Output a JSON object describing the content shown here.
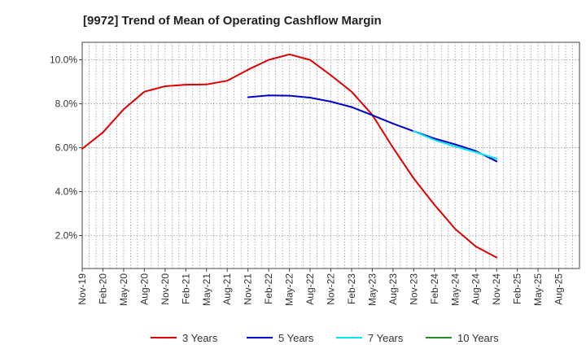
{
  "chart_data": {
    "type": "line",
    "title": "[9972]  Trend of Mean of Operating Cashflow Margin",
    "xlabel": "",
    "ylabel": "",
    "ylim": [
      0.5,
      10.8
    ],
    "y_ticks": [
      2.0,
      4.0,
      6.0,
      8.0,
      10.0
    ],
    "y_tick_labels": [
      "2.0%",
      "4.0%",
      "6.0%",
      "8.0%",
      "10.0%"
    ],
    "x_tick_labels": [
      "Nov-19",
      "Feb-20",
      "May-20",
      "Aug-20",
      "Nov-20",
      "Feb-21",
      "May-21",
      "Aug-21",
      "Nov-21",
      "Feb-22",
      "May-22",
      "Aug-22",
      "Nov-22",
      "Feb-23",
      "May-23",
      "Aug-23",
      "Nov-23",
      "Feb-24",
      "May-24",
      "Aug-24",
      "Nov-24",
      "Feb-25",
      "May-25",
      "Aug-25"
    ],
    "grid": true,
    "legend_position": "bottom",
    "series": [
      {
        "name": "3 Years",
        "color": "#dd0000",
        "start_index": 0,
        "values": [
          5.95,
          6.7,
          7.75,
          8.55,
          8.8,
          8.87,
          8.88,
          9.05,
          9.55,
          10.0,
          10.25,
          10.0,
          9.3,
          8.55,
          7.5,
          6.0,
          4.6,
          3.4,
          2.3,
          1.5,
          1.0
        ]
      },
      {
        "name": "5 Years",
        "color": "#0000cc",
        "start_index": 8,
        "values": [
          8.3,
          8.38,
          8.37,
          8.28,
          8.1,
          7.85,
          7.48,
          7.1,
          6.75,
          6.42,
          6.15,
          5.85,
          5.38
        ]
      },
      {
        "name": "7 Years",
        "color": "#00e5ee",
        "start_index": 16,
        "values": [
          6.75,
          6.35,
          6.05,
          5.8,
          5.5
        ]
      },
      {
        "name": "10 Years",
        "color": "#228b22",
        "start_index": 0,
        "values": []
      }
    ]
  }
}
